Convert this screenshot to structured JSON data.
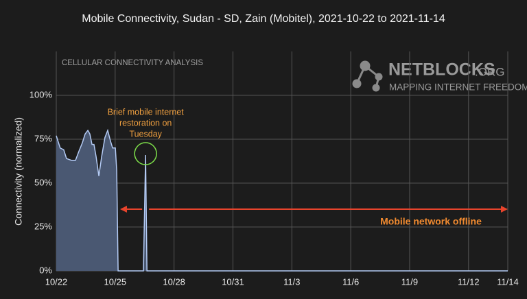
{
  "chart_data": {
    "type": "area",
    "title": "Mobile Connectivity, Sudan - SD, Zain (Mobitel), 2021-10-22 to 2021-11-14",
    "subtitle": "CELLULAR CONNECTIVITY ANALYSIS",
    "y_label": "Connectivity (normalized)",
    "logo": {
      "name": "NETBLOCKS",
      "suffix": ".ORG",
      "tagline": "MAPPING INTERNET FREEDOM"
    },
    "xlim": [
      0,
      23
    ],
    "xticks": [
      {
        "value": 0,
        "label": "10/22"
      },
      {
        "value": 3,
        "label": "10/25"
      },
      {
        "value": 6,
        "label": "10/28"
      },
      {
        "value": 9,
        "label": "10/31"
      },
      {
        "value": 12,
        "label": "11/3"
      },
      {
        "value": 15,
        "label": "11/6"
      },
      {
        "value": 18,
        "label": "11/9"
      },
      {
        "value": 21,
        "label": "11/12"
      },
      {
        "value": 23,
        "label": "11/14"
      }
    ],
    "ylim": [
      0,
      125
    ],
    "yticks": [
      {
        "value": 0,
        "label": "0%"
      },
      {
        "value": 25,
        "label": "25%"
      },
      {
        "value": 50,
        "label": "50%"
      },
      {
        "value": 75,
        "label": "75%"
      },
      {
        "value": 100,
        "label": "100%"
      }
    ],
    "grid": true,
    "series": [
      {
        "color": "#b4cbf5",
        "fill": "#4a5872",
        "x": [
          0,
          0.2,
          0.38,
          0.52,
          0.77,
          0.98,
          1.15,
          1.33,
          1.47,
          1.61,
          1.71,
          1.82,
          1.92,
          2.03,
          2.17,
          2.31,
          2.48,
          2.62,
          2.76,
          2.87,
          3.01,
          3.08,
          3.15,
          4.44,
          4.55,
          4.62,
          23
        ],
        "values": [
          77,
          70,
          69,
          64,
          63,
          63,
          68,
          73,
          78,
          80,
          78,
          72,
          72,
          65,
          54,
          65,
          76,
          80,
          74,
          70,
          70,
          57,
          0,
          0,
          66,
          0,
          0
        ]
      }
    ],
    "annotations": [
      {
        "lines": [
          "Brief mobile internet",
          "restoration on",
          "Tuesday"
        ],
        "x": 4.55,
        "y": 66,
        "color": "#f0a040",
        "circle_color": "#7ee04a"
      },
      {
        "text": "Mobile network offline",
        "color": "#f08a30",
        "arrow_color": "#e8442c",
        "x_start": 3.25,
        "x_gap": 4.55,
        "x_end": 23
      }
    ]
  }
}
